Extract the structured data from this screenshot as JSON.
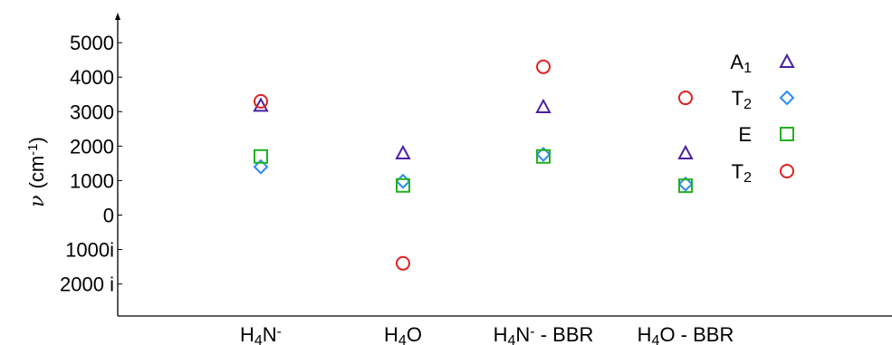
{
  "chart_data": {
    "type": "scatter",
    "ylabel": {
      "symbol": "ν",
      "unit_pre": "(cm",
      "unit_sup": "-1",
      "unit_post": ")"
    },
    "categories": [
      {
        "id": "H4N-",
        "parts": [
          {
            "t": "H"
          },
          {
            "t": "4",
            "sub": true
          },
          {
            "t": "N"
          },
          {
            "t": "-",
            "sup": true
          }
        ]
      },
      {
        "id": "H4O",
        "parts": [
          {
            "t": "H"
          },
          {
            "t": "4",
            "sub": true
          },
          {
            "t": "O"
          }
        ]
      },
      {
        "id": "H4N- - BBR",
        "parts": [
          {
            "t": "H"
          },
          {
            "t": "4",
            "sub": true
          },
          {
            "t": "N"
          },
          {
            "t": "-",
            "sup": true
          },
          {
            "t": " - BBR"
          }
        ]
      },
      {
        "id": "H4O - BBR",
        "parts": [
          {
            "t": "H"
          },
          {
            "t": "4",
            "sub": true
          },
          {
            "t": "O - BBR"
          }
        ]
      }
    ],
    "yticks": [
      {
        "value": 5000,
        "label": "5000"
      },
      {
        "value": 4000,
        "label": "4000"
      },
      {
        "value": 3000,
        "label": "3000"
      },
      {
        "value": 2000,
        "label": "2000"
      },
      {
        "value": 1000,
        "label": "1000"
      },
      {
        "value": 0,
        "label": "0"
      },
      {
        "value": -1000,
        "label": "1000i"
      },
      {
        "value": -2000,
        "label": "2000 i"
      }
    ],
    "ylim": [
      -3000,
      5500
    ],
    "note": "imaginary frequencies plotted as negative values",
    "series": [
      {
        "name": "A1",
        "label_main": "A",
        "label_sub": "1",
        "marker": "triangle",
        "color": "#4b1fa0",
        "values": [
          3180,
          1800,
          3140,
          1800
        ]
      },
      {
        "name": "T2",
        "label_main": "T",
        "label_sub": "2",
        "marker": "diamond",
        "color": "#2a8cf0",
        "values": [
          1400,
          980,
          1760,
          900
        ]
      },
      {
        "name": "E",
        "label_main": "E",
        "label_sub": "",
        "marker": "square",
        "color": "#22b022",
        "values": [
          1700,
          860,
          1700,
          850
        ]
      },
      {
        "name": "T2",
        "label_main": "T",
        "label_sub": "2",
        "marker": "circle",
        "color": "#e02020",
        "values": [
          3300,
          -1400,
          4300,
          3400
        ]
      }
    ],
    "legend_position": "right",
    "grid": false
  }
}
